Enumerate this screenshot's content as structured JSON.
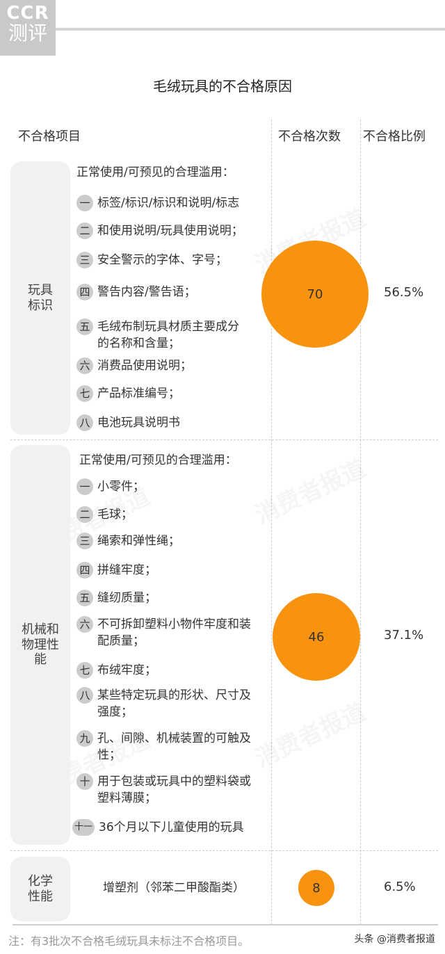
{
  "logo": {
    "line1": "CCR",
    "line2": "测评"
  },
  "chart_data": {
    "type": "table",
    "title": "毛绒玩具的不合格原因",
    "columns": [
      "不合格项目",
      "不合格次数",
      "不合格比例"
    ],
    "rows": [
      {
        "category": "玩具标识",
        "intro": "正常使用/可预见的合理滥用：",
        "items": [
          {
            "n": "一",
            "text": "标签/标识/标识和说明/标志"
          },
          {
            "n": "二",
            "text": "和使用说明/玩具使用说明；"
          },
          {
            "n": "三",
            "text": "安全警示的字体、字号；"
          },
          {
            "n": "四",
            "text": "警告内容/警告语；"
          },
          {
            "n": "五",
            "text": "毛绒布制玩具材质主要成分的名称和含量；"
          },
          {
            "n": "六",
            "text": "消费品使用说明；"
          },
          {
            "n": "七",
            "text": "产品标准编号；"
          },
          {
            "n": "八",
            "text": "电池玩具说明书"
          }
        ],
        "count": 70,
        "ratio": "56.5%"
      },
      {
        "category": "机械和物理性能",
        "intro": "正常使用/可预见的合理滥用：",
        "items": [
          {
            "n": "一",
            "text": "小零件；"
          },
          {
            "n": "二",
            "text": "毛球；"
          },
          {
            "n": "三",
            "text": "绳索和弹性绳；"
          },
          {
            "n": "四",
            "text": "拼缝牢度；"
          },
          {
            "n": "五",
            "text": "缝纫质量；"
          },
          {
            "n": "六",
            "text": "不可拆卸塑料小物件牢度和装配质量；"
          },
          {
            "n": "七",
            "text": "布绒牢度；"
          },
          {
            "n": "八",
            "text": "某些特定玩具的形状、尺寸及强度；"
          },
          {
            "n": "九",
            "text": "孔、间隙、机械装置的可触及性；"
          },
          {
            "n": "十",
            "text": "用于包装或玩具中的塑料袋或塑料薄膜；"
          },
          {
            "n": "十一",
            "text": "36个月以下儿童使用的玩具"
          }
        ],
        "count": 46,
        "ratio": "37.1%"
      },
      {
        "category": "化学性能",
        "text": "增塑剂（邻苯二甲酸酯类）",
        "count": 8,
        "ratio": "6.5%"
      }
    ],
    "bubble_color": "#f7930f"
  },
  "note": "注：有3批次不合格毛绒玩具未标注不合格项目。",
  "credit": "头条 @消费者报道",
  "watermark": "消费者报道"
}
